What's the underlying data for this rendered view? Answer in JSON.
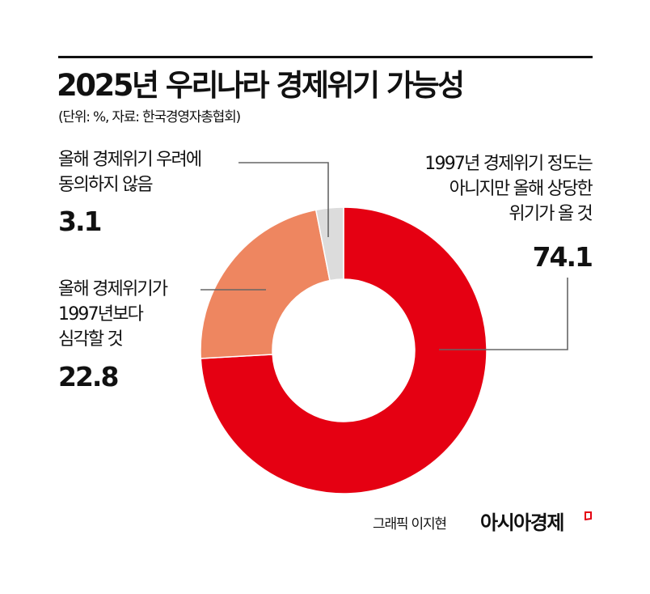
{
  "header": {
    "title": "2025년 우리나라 경제위기 가능성",
    "subtitle": "(단위: %, 자료: 한국경영자총협회)"
  },
  "labels": {
    "not_worried": {
      "lines": [
        "올해 경제위기 우려에",
        "동의하지 않음"
      ],
      "value": "3.1"
    },
    "more_severe": {
      "lines": [
        "올해 경제위기가",
        "1997년보다",
        "심각할 것"
      ],
      "value": "22.8"
    },
    "considerable": {
      "lines": [
        "1997년 경제위기 정도는",
        "아니지만 올해 상당한",
        "위기가 올 것"
      ],
      "value": "74.1"
    }
  },
  "footer": {
    "credit": "그래픽 이지현",
    "brand": "아시아경제"
  },
  "colors": {
    "considerable": "#E50012",
    "more_severe": "#EE8660",
    "not_worried": "#DCDCDC",
    "leader": "#666666",
    "brand_mark": "#E50012"
  },
  "chart_data": {
    "type": "pie",
    "subtype": "donut",
    "title": "2025년 우리나라 경제위기 가능성",
    "subtitle": "(단위: %, 자료: 한국경영자총협회)",
    "unit": "%",
    "source": "한국경영자총협회",
    "categories": [
      "1997년 경제위기 정도는 아니지만 올해 상당한 위기가 올 것",
      "올해 경제위기가 1997년보다 심각할 것",
      "올해 경제위기 우려에 동의하지 않음"
    ],
    "values": [
      74.1,
      22.8,
      3.1
    ],
    "colors": [
      "#E50012",
      "#EE8660",
      "#DCDCDC"
    ],
    "start_angle_deg": 0,
    "direction": "clockwise",
    "legend": "none (callout labels with leader lines)"
  }
}
